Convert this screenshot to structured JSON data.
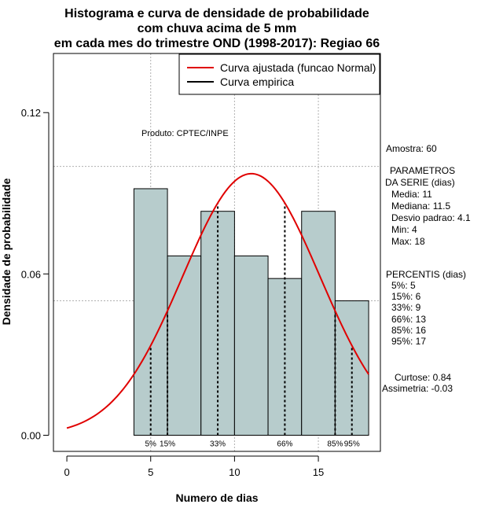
{
  "chart_data": {
    "type": "bar",
    "title_lines": [
      "Histograma e curva de densidade de probabilidade",
      "com chuva acima de 5 mm",
      "em cada mes do trimestre OND (1998-2017): Regiao 66"
    ],
    "xlabel": "Numero de dias",
    "ylabel": "Densidade de probabilidade",
    "xlim": [
      -0.8,
      18.7
    ],
    "ylim": [
      -0.006,
      0.142
    ],
    "x_ticks": [
      0,
      5,
      10,
      15
    ],
    "x_tick_labels": [
      "0",
      "5",
      "10",
      "15"
    ],
    "y_ticks": [
      0.0,
      0.06,
      0.12
    ],
    "y_tick_labels": [
      "0.00",
      "0.06",
      "0.12"
    ],
    "grid": true,
    "grid_lines_x": [
      5,
      10,
      15
    ],
    "grid_lines_y": [
      0.05,
      0.1
    ],
    "bars": [
      {
        "x0": 4,
        "x1": 6,
        "value": 0.0917
      },
      {
        "x0": 6,
        "x1": 8,
        "value": 0.0667
      },
      {
        "x0": 8,
        "x1": 10,
        "value": 0.0833
      },
      {
        "x0": 10,
        "x1": 12,
        "value": 0.0667
      },
      {
        "x0": 12,
        "x1": 14,
        "value": 0.0583
      },
      {
        "x0": 14,
        "x1": 16,
        "value": 0.0833
      },
      {
        "x0": 16,
        "x1": 18,
        "value": 0.05
      }
    ],
    "bar_color": "#b7cccc",
    "series": [
      {
        "name": "Curva ajustada (funcao Normal)",
        "color": "#e00000",
        "type": "normal",
        "mean": 11,
        "sd": 4.1,
        "x_from": 0,
        "x_to": 18
      },
      {
        "name": "Curva empirica",
        "color": "#000000"
      }
    ],
    "legend": {
      "position": "top-right"
    },
    "percentile_lines": [
      {
        "label": "5%",
        "x": 5
      },
      {
        "label": "15%",
        "x": 6
      },
      {
        "label": "33%",
        "x": 9
      },
      {
        "label": "66%",
        "x": 13
      },
      {
        "label": "85%",
        "x": 16
      },
      {
        "label": "95%",
        "x": 17
      }
    ],
    "annotation": "Produto: CPTEC/INPE"
  },
  "stats": {
    "sample": "Amostra: 60",
    "params_title_1": "PARAMETROS",
    "params_title_2": "DA SERIE (dias)",
    "params": [
      "Media: 11",
      "Mediana: 11.5",
      "Desvio padrao: 4.1",
      "Min: 4",
      "Max: 18"
    ],
    "percentis_title": "PERCENTIS (dias)",
    "percentis": [
      "5%: 5",
      "15%: 6",
      "33%: 9",
      "66%: 13",
      "85%: 16",
      "95%: 17"
    ],
    "curtose": "Curtose: 0.84",
    "assimetria": "Assimetria: -0.03"
  }
}
